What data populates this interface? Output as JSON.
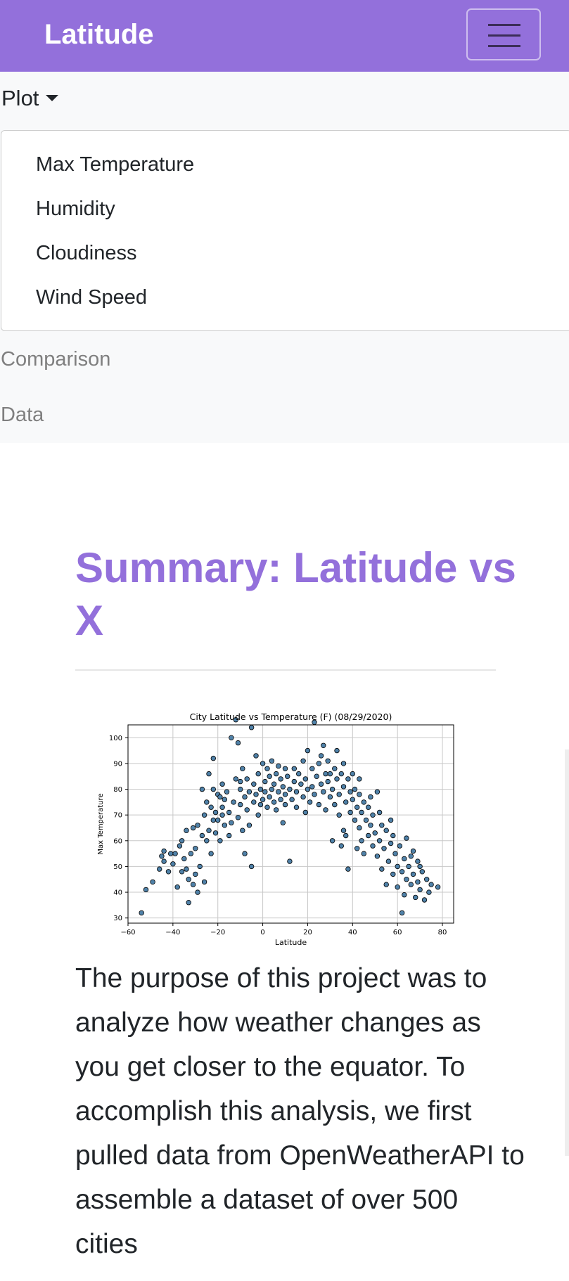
{
  "navbar": {
    "brand": "Latitude",
    "toggler_icon": "hamburger-icon",
    "background": "#9370db"
  },
  "nav": {
    "plot_label": "Plot",
    "plot_icon": "caret-down-icon",
    "dropdown_items": [
      {
        "label": "Max Temperature"
      },
      {
        "label": "Humidity"
      },
      {
        "label": "Cloudiness"
      },
      {
        "label": "Wind Speed"
      }
    ],
    "comparison_label": "Comparison",
    "data_label": "Data"
  },
  "summary": {
    "title": "Summary: Latitude vs X",
    "description": "The purpose of this project was to analyze how weather changes as you get closer to the equator. To accomplish this analysis, we first pulled data from OpenWeatherAPI to assemble a dataset of over 500 cities"
  },
  "chart_data": {
    "type": "scatter",
    "title": "City Latitude vs Temperature (F) (08/29/2020)",
    "xlabel": "Latitude",
    "ylabel": "Max Temperature",
    "xlim": [
      -60,
      85
    ],
    "ylim": [
      28,
      105
    ],
    "xticks": [
      -60,
      -40,
      -20,
      0,
      20,
      40,
      60,
      80
    ],
    "yticks": [
      30,
      40,
      50,
      60,
      70,
      80,
      90,
      100
    ],
    "grid": true,
    "point_color": "#4f81a8",
    "point_edge_color": "#000000",
    "points": [
      [
        -54,
        32
      ],
      [
        -52,
        41
      ],
      [
        -49,
        44
      ],
      [
        -46,
        49
      ],
      [
        -45,
        54
      ],
      [
        -44,
        52
      ],
      [
        -42,
        48
      ],
      [
        -41,
        55
      ],
      [
        -40,
        51
      ],
      [
        -39,
        55
      ],
      [
        -37,
        58
      ],
      [
        -36,
        60
      ],
      [
        -35,
        53
      ],
      [
        -34,
        64
      ],
      [
        -34,
        49
      ],
      [
        -33,
        45
      ],
      [
        -33,
        36
      ],
      [
        -32,
        55
      ],
      [
        -31,
        65
      ],
      [
        -31,
        43
      ],
      [
        -30,
        47
      ],
      [
        -30,
        57
      ],
      [
        -29,
        66
      ],
      [
        -29,
        40
      ],
      [
        -28,
        50
      ],
      [
        -27,
        62
      ],
      [
        -27,
        80
      ],
      [
        -26,
        70
      ],
      [
        -26,
        44
      ],
      [
        -25,
        75
      ],
      [
        -25,
        60
      ],
      [
        -24,
        64
      ],
      [
        -24,
        86
      ],
      [
        -23,
        73
      ],
      [
        -23,
        55
      ],
      [
        -22,
        80
      ],
      [
        -22,
        92
      ],
      [
        -21,
        71
      ],
      [
        -21,
        63
      ],
      [
        -20,
        78
      ],
      [
        -20,
        68
      ],
      [
        -19,
        77
      ],
      [
        -19,
        60
      ],
      [
        -18,
        82
      ],
      [
        -18,
        73
      ],
      [
        -17,
        66
      ],
      [
        -17,
        76
      ],
      [
        -16,
        79
      ],
      [
        -15,
        62
      ],
      [
        -15,
        71
      ],
      [
        -14,
        100
      ],
      [
        -14,
        67
      ],
      [
        -13,
        75
      ],
      [
        -12,
        84
      ],
      [
        -12,
        107
      ],
      [
        -11,
        69
      ],
      [
        -11,
        98
      ],
      [
        -10,
        80
      ],
      [
        -10,
        74
      ],
      [
        -9,
        88
      ],
      [
        -9,
        64
      ],
      [
        -8,
        77
      ],
      [
        -8,
        55
      ],
      [
        -7,
        84
      ],
      [
        -7,
        72
      ],
      [
        -6,
        79
      ],
      [
        -5,
        104
      ],
      [
        -5,
        50
      ],
      [
        -4,
        82
      ],
      [
        -4,
        75
      ],
      [
        -3,
        93
      ],
      [
        -3,
        78
      ],
      [
        -2,
        70
      ],
      [
        -2,
        86
      ],
      [
        -1,
        80
      ],
      [
        -1,
        74
      ],
      [
        0,
        90
      ],
      [
        0,
        76
      ],
      [
        1,
        83
      ],
      [
        1,
        79
      ],
      [
        2,
        88
      ],
      [
        2,
        73
      ],
      [
        3,
        77
      ],
      [
        3,
        85
      ],
      [
        4,
        80
      ],
      [
        4,
        91
      ],
      [
        5,
        75
      ],
      [
        5,
        82
      ],
      [
        6,
        72
      ],
      [
        6,
        86
      ],
      [
        7,
        79
      ],
      [
        7,
        89
      ],
      [
        8,
        76
      ],
      [
        8,
        84
      ],
      [
        9,
        81
      ],
      [
        9,
        67
      ],
      [
        10,
        78
      ],
      [
        10,
        74
      ],
      [
        11,
        85
      ],
      [
        12,
        52
      ],
      [
        12,
        80
      ],
      [
        13,
        76
      ],
      [
        14,
        88
      ],
      [
        14,
        83
      ],
      [
        15,
        79
      ],
      [
        15,
        73
      ],
      [
        16,
        86
      ],
      [
        17,
        82
      ],
      [
        18,
        91
      ],
      [
        18,
        77
      ],
      [
        19,
        84
      ],
      [
        19,
        71
      ],
      [
        20,
        80
      ],
      [
        20,
        95
      ],
      [
        21,
        75
      ],
      [
        22,
        88
      ],
      [
        22,
        81
      ],
      [
        23,
        106
      ],
      [
        23,
        78
      ],
      [
        24,
        85
      ],
      [
        25,
        74
      ],
      [
        25,
        90
      ],
      [
        26,
        82
      ],
      [
        27,
        79
      ],
      [
        27,
        97
      ],
      [
        28,
        86
      ],
      [
        28,
        72
      ],
      [
        29,
        83
      ],
      [
        29,
        91
      ],
      [
        30,
        77
      ],
      [
        31,
        80
      ],
      [
        31,
        60
      ],
      [
        32,
        88
      ],
      [
        32,
        74
      ],
      [
        33,
        84
      ],
      [
        33,
        95
      ],
      [
        34,
        78
      ],
      [
        34,
        70
      ],
      [
        35,
        86
      ],
      [
        35,
        58
      ],
      [
        36,
        81
      ],
      [
        36,
        90
      ],
      [
        37,
        75
      ],
      [
        37,
        62
      ],
      [
        38,
        84
      ],
      [
        38,
        49
      ],
      [
        39,
        79
      ],
      [
        39,
        71
      ],
      [
        40,
        76
      ],
      [
        40,
        86
      ],
      [
        41,
        68
      ],
      [
        41,
        80
      ],
      [
        42,
        73
      ],
      [
        42,
        57
      ],
      [
        43,
        78
      ],
      [
        43,
        65
      ],
      [
        44,
        71
      ],
      [
        44,
        60
      ],
      [
        45,
        75
      ],
      [
        45,
        55
      ],
      [
        46,
        68
      ],
      [
        47,
        62
      ],
      [
        47,
        73
      ],
      [
        48,
        66
      ],
      [
        49,
        58
      ],
      [
        49,
        70
      ],
      [
        50,
        63
      ],
      [
        51,
        54
      ],
      [
        51,
        79
      ],
      [
        52,
        60
      ],
      [
        53,
        66
      ],
      [
        53,
        49
      ],
      [
        54,
        57
      ],
      [
        55,
        64
      ],
      [
        55,
        43
      ],
      [
        56,
        52
      ],
      [
        57,
        59
      ],
      [
        57,
        68
      ],
      [
        58,
        47
      ],
      [
        59,
        55
      ],
      [
        60,
        50
      ],
      [
        60,
        42
      ],
      [
        61,
        58
      ],
      [
        62,
        48
      ],
      [
        62,
        32
      ],
      [
        63,
        53
      ],
      [
        64,
        45
      ],
      [
        64,
        61
      ],
      [
        65,
        50
      ],
      [
        66,
        43
      ],
      [
        67,
        47
      ],
      [
        67,
        56
      ],
      [
        68,
        38
      ],
      [
        69,
        44
      ],
      [
        69,
        52
      ],
      [
        70,
        41
      ],
      [
        71,
        48
      ],
      [
        72,
        37
      ],
      [
        73,
        45
      ],
      [
        74,
        40
      ],
      [
        75,
        43
      ],
      [
        78,
        42
      ],
      [
        -38,
        42
      ],
      [
        -36,
        48
      ],
      [
        -22,
        68
      ],
      [
        -18,
        70
      ],
      [
        -6,
        66
      ],
      [
        10,
        88
      ],
      [
        26,
        93
      ],
      [
        30,
        86
      ],
      [
        36,
        64
      ],
      [
        43,
        84
      ],
      [
        48,
        77
      ],
      [
        52,
        71
      ],
      [
        58,
        62
      ],
      [
        63,
        39
      ],
      [
        66,
        54
      ],
      [
        70,
        50
      ],
      [
        -44,
        56
      ],
      [
        -10,
        83
      ]
    ]
  }
}
